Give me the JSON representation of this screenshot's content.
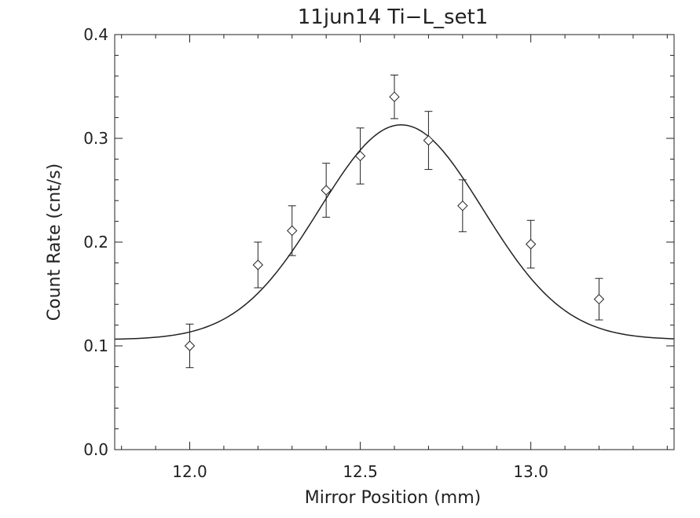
{
  "chart_data": {
    "type": "scatter",
    "title": "11jun14 Ti−L_set1",
    "xlabel": "Mirror Position (mm)",
    "ylabel": "Count Rate (cnt/s)",
    "xlim": [
      11.78,
      13.42
    ],
    "ylim": [
      0.0,
      0.4
    ],
    "x_tick_labels": [
      "12.0",
      "12.5",
      "13.0"
    ],
    "y_tick_labels": [
      "0.0",
      "0.1",
      "0.2",
      "0.3",
      "0.4"
    ],
    "grid": false,
    "marker": "diamond",
    "series": [
      {
        "type": "scatter_with_error_bars",
        "x": [
          12.0,
          12.2,
          12.3,
          12.4,
          12.5,
          12.6,
          12.7,
          12.8,
          13.0,
          13.2
        ],
        "y": [
          0.1,
          0.178,
          0.211,
          0.25,
          0.283,
          0.34,
          0.298,
          0.235,
          0.198,
          0.145
        ],
        "error": [
          0.021,
          0.022,
          0.024,
          0.026,
          0.027,
          0.021,
          0.028,
          0.025,
          0.023,
          0.02
        ]
      },
      {
        "type": "line",
        "model": "gaussian",
        "baseline": 0.106,
        "amplitude": 0.207,
        "center": 12.62,
        "sigma": 0.24
      }
    ],
    "colors": {
      "axes": "#222222",
      "data": "#222222",
      "background": "#ffffff"
    }
  }
}
